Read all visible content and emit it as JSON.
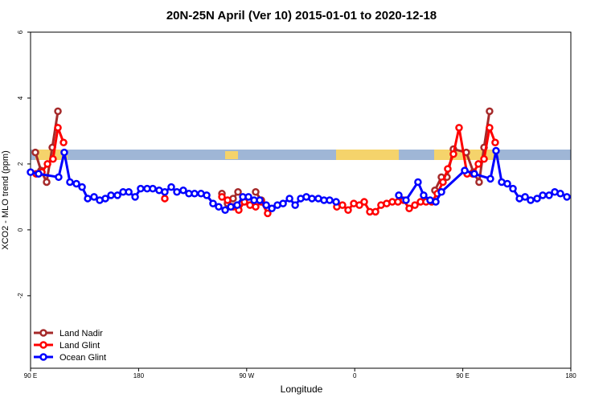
{
  "chart_data": {
    "type": "line",
    "title": "20N-25N April (Ver 10)   2015-01-01 to 2020-12-18",
    "x_label": "Longitude",
    "y_label": "XCO2 - MLO trend (ppm)",
    "xlim": [
      90,
      540
    ],
    "ylim": [
      -4.2,
      6
    ],
    "xticks": [
      {
        "value": 90,
        "label": "90 E"
      },
      {
        "value": 180,
        "label": "180"
      },
      {
        "value": 270,
        "label": "90 W"
      },
      {
        "value": 360,
        "label": "0"
      },
      {
        "value": 450,
        "label": "90 E"
      },
      {
        "value": 540,
        "label": "180"
      }
    ],
    "yticks": [
      6,
      4,
      2,
      0,
      -2
    ],
    "legend": "bottom-left",
    "series": [
      {
        "name": "Land Nadir",
        "color": "#a52a2a",
        "x": [
          94.0,
          98.7,
          103.4,
          108.1,
          112.8,
          null,
          249.4,
          254.1,
          258.7,
          262.8,
          null,
          277.5,
          282.2,
          null,
          426.8,
          432.2,
          436.8,
          442.2,
          452.9,
          458.9,
          463.6,
          467.7,
          472.3
        ],
        "values": [
          2.35,
          1.8,
          1.45,
          2.5,
          3.6,
          null,
          1.1,
          0.8,
          0.95,
          1.15,
          null,
          1.15,
          0.9,
          null,
          1.2,
          1.6,
          1.6,
          2.45,
          2.35,
          1.75,
          1.45,
          2.5,
          3.6
        ]
      },
      {
        "name": "Land Glint",
        "color": "#ff0000",
        "x": [
          94.7,
          99.4,
          104.1,
          108.7,
          112.8,
          117.5,
          null,
          201.8,
          null,
          249.4,
          254.1,
          258.7,
          263.4,
          268.1,
          272.8,
          277.5,
          282.2,
          287.5,
          null,
          345.1,
          349.8,
          354.5,
          359.2,
          363.9,
          367.9,
          372.6,
          377.3,
          381.9,
          386.6,
          391.3,
          396.0,
          400.7,
          405.4,
          410.1,
          414.8,
          419.4,
          424.1,
          428.8,
          433.5,
          437.5,
          442.2,
          446.9,
          453.6,
          458.3,
          463.0,
          467.7,
          472.3,
          477.0
        ],
        "values": [
          1.7,
          1.75,
          2.0,
          2.15,
          3.1,
          2.65,
          null,
          0.95,
          null,
          1.0,
          0.9,
          0.7,
          0.6,
          0.85,
          0.75,
          0.7,
          0.85,
          0.5,
          null,
          0.7,
          0.75,
          0.6,
          0.8,
          0.75,
          0.85,
          0.55,
          0.55,
          0.75,
          0.8,
          0.85,
          0.85,
          0.9,
          0.65,
          0.75,
          0.85,
          0.85,
          0.85,
          1.1,
          1.45,
          1.85,
          2.3,
          3.1,
          1.7,
          1.7,
          2.0,
          2.15,
          3.1,
          2.65
        ]
      },
      {
        "name": "Ocean Glint",
        "color": "#0000ff",
        "x": [
          90,
          96.7,
          113.4,
          118.1,
          122.8,
          128.2,
          132.9,
          137.6,
          142.9,
          147.6,
          152.3,
          157.0,
          162.4,
          167.1,
          171.8,
          177.1,
          181.7,
          187.1,
          191.8,
          197.1,
          201.8,
          207.2,
          211.9,
          217.2,
          221.9,
          226.6,
          232.0,
          236.7,
          242.0,
          246.7,
          252.1,
          256.8,
          262.1,
          266.8,
          271.5,
          276.2,
          280.9,
          286.3,
          291.0,
          295.6,
          300.3,
          305.7,
          310.4,
          315.0,
          319.7,
          324.4,
          329.7,
          334.4,
          339.1,
          344.5,
          null,
          396.7,
          402.7,
          412.7,
          417.4,
          422.8,
          427.5,
          432.2,
          451.6,
          459.6,
          473.0,
          477.7,
          482.4,
          487.1,
          491.8,
          497.2,
          501.9,
          506.5,
          511.9,
          516.6,
          521.9,
          526.6,
          531.3,
          536.7
        ],
        "values": [
          1.75,
          1.7,
          1.6,
          2.35,
          1.45,
          1.4,
          1.3,
          0.95,
          1.0,
          0.9,
          0.95,
          1.05,
          1.05,
          1.15,
          1.15,
          1.0,
          1.25,
          1.25,
          1.25,
          1.2,
          1.15,
          1.3,
          1.15,
          1.2,
          1.1,
          1.1,
          1.1,
          1.05,
          0.8,
          0.7,
          0.6,
          0.7,
          0.75,
          1.0,
          1.0,
          0.9,
          0.9,
          0.75,
          0.65,
          0.75,
          0.8,
          0.95,
          0.75,
          0.95,
          1.0,
          0.95,
          0.95,
          0.9,
          0.9,
          0.85,
          null,
          1.05,
          0.9,
          1.45,
          1.05,
          0.9,
          0.85,
          1.15,
          1.8,
          1.7,
          1.55,
          2.4,
          1.45,
          1.4,
          1.25,
          0.95,
          1.0,
          0.9,
          0.95,
          1.05,
          1.05,
          1.15,
          1.1,
          1.0
        ]
      }
    ]
  }
}
